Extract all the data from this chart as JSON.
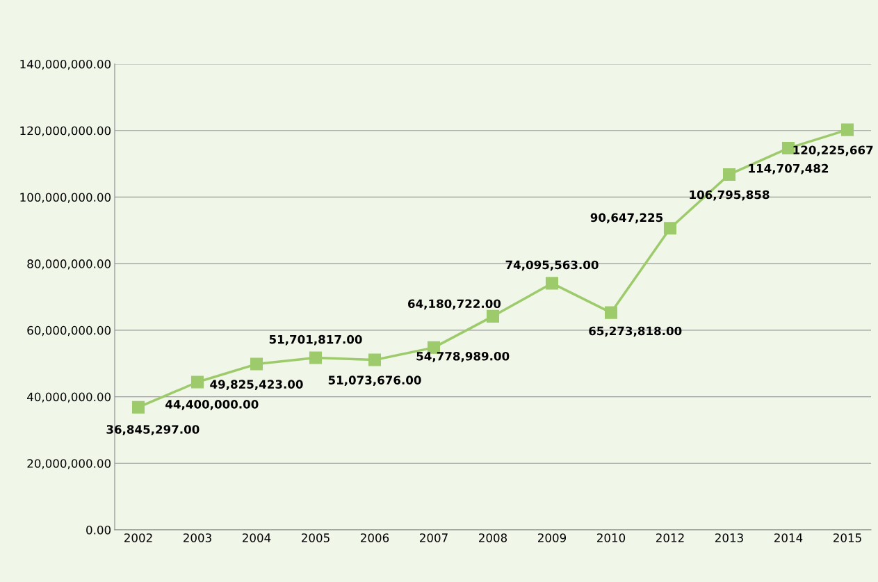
{
  "chart_data": {
    "type": "line",
    "categories": [
      "2002",
      "2003",
      "2004",
      "2005",
      "2006",
      "2007",
      "2008",
      "2009",
      "2010",
      "2012",
      "2013",
      "2014",
      "2015"
    ],
    "series": [
      {
        "color": "#9dcb6b",
        "values": [
          36845297,
          44400000,
          49825423,
          51701817,
          51073676,
          54778989,
          64180722,
          74095563,
          65273818,
          90647225,
          106795858,
          114707482,
          120225667
        ],
        "value_labels": [
          "36,845,297.00",
          "44,400,000.00",
          "49,825,423.00",
          "51,701,817.00",
          "51,073,676.00",
          "54,778,989.00",
          "64,180,722.00",
          "74,095,563.00",
          "65,273,818.00",
          "90,647,225",
          "106,795,858",
          "114,707,482",
          "120,225,667"
        ]
      }
    ],
    "ylim": [
      0,
      140000000
    ],
    "yticks": [
      {
        "value": 0,
        "label": "0.00"
      },
      {
        "value": 20000000,
        "label": "20,000,000.00"
      },
      {
        "value": 40000000,
        "label": "40,000,000.00"
      },
      {
        "value": 60000000,
        "label": "60,000,000.00"
      },
      {
        "value": 80000000,
        "label": "80,000,000.00"
      },
      {
        "value": 100000000,
        "label": "100,000,000.00"
      },
      {
        "value": 120000000,
        "label": "120,000,000.00"
      },
      {
        "value": 140000000,
        "label": "140,000,000.00"
      }
    ],
    "grid": "y",
    "marker": "square",
    "line_style": "solid",
    "legend": false
  }
}
